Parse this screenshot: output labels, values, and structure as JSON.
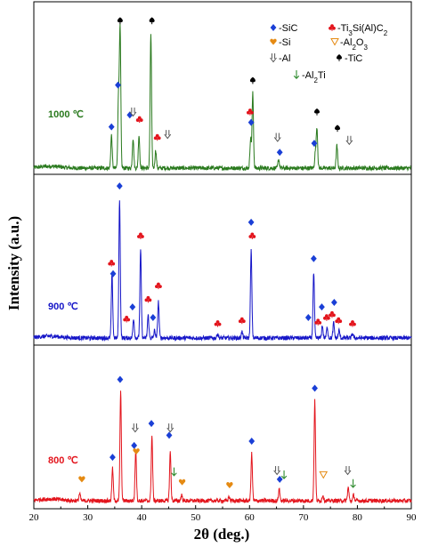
{
  "chart_data": {
    "type": "line",
    "xlabel": "2θ (deg.)",
    "ylabel": "Intensity (a.u.)",
    "xlim": [
      20,
      90
    ],
    "x_ticks": [
      20,
      30,
      40,
      50,
      60,
      70,
      80,
      90
    ],
    "panels": [
      {
        "label": "1000 ℃",
        "color": "#2a7a1e",
        "peaks": [
          {
            "x": 34.4,
            "h": 0.22
          },
          {
            "x": 35.7,
            "h": 0.47
          },
          {
            "x": 36.0,
            "h": 0.92
          },
          {
            "x": 38.4,
            "h": 0.2
          },
          {
            "x": 39.5,
            "h": 0.22
          },
          {
            "x": 41.7,
            "h": 0.9
          },
          {
            "x": 42.6,
            "h": 0.12
          },
          {
            "x": 60.2,
            "h": 0.2
          },
          {
            "x": 60.6,
            "h": 0.5
          },
          {
            "x": 65.4,
            "h": 0.06
          },
          {
            "x": 72.2,
            "h": 0.1
          },
          {
            "x": 72.5,
            "h": 0.27
          },
          {
            "x": 76.2,
            "h": 0.15
          }
        ],
        "markers": [
          {
            "x": 34.4,
            "type": "SiC",
            "h": 0.24
          },
          {
            "x": 35.6,
            "type": "SiC",
            "h": 0.52
          },
          {
            "x": 36.0,
            "type": "TiC",
            "h": 0.95
          },
          {
            "x": 37.8,
            "type": "SiC",
            "h": 0.32
          },
          {
            "x": 38.4,
            "type": "Al",
            "h": 0.34
          },
          {
            "x": 39.6,
            "type": "Ti3SiAlC2",
            "h": 0.29
          },
          {
            "x": 41.9,
            "type": "TiC",
            "h": 0.95
          },
          {
            "x": 42.9,
            "type": "Ti3SiAlC2",
            "h": 0.17
          },
          {
            "x": 44.8,
            "type": "Al",
            "h": 0.19
          },
          {
            "x": 60.3,
            "type": "SiC",
            "h": 0.27
          },
          {
            "x": 60.1,
            "type": "Ti3SiAlC2",
            "h": 0.34
          },
          {
            "x": 60.6,
            "type": "TiC",
            "h": 0.55
          },
          {
            "x": 65.2,
            "type": "Al",
            "h": 0.17
          },
          {
            "x": 65.6,
            "type": "SiC",
            "h": 0.07
          },
          {
            "x": 72.0,
            "type": "SiC",
            "h": 0.13
          },
          {
            "x": 72.5,
            "type": "TiC",
            "h": 0.34
          },
          {
            "x": 76.3,
            "type": "TiC",
            "h": 0.23
          },
          {
            "x": 78.5,
            "type": "Al",
            "h": 0.15
          }
        ]
      },
      {
        "label": "900 ℃",
        "color": "#1616c8",
        "peaks": [
          {
            "x": 34.5,
            "h": 0.42
          },
          {
            "x": 35.9,
            "h": 0.92
          },
          {
            "x": 38.5,
            "h": 0.13
          },
          {
            "x": 39.8,
            "h": 0.58
          },
          {
            "x": 41.2,
            "h": 0.15
          },
          {
            "x": 42.4,
            "h": 0.05
          },
          {
            "x": 43.1,
            "h": 0.24
          },
          {
            "x": 54.1,
            "h": 0.03
          },
          {
            "x": 58.6,
            "h": 0.04
          },
          {
            "x": 60.3,
            "h": 0.58
          },
          {
            "x": 71.9,
            "h": 0.43
          },
          {
            "x": 73.5,
            "h": 0.08
          },
          {
            "x": 74.4,
            "h": 0.07
          },
          {
            "x": 75.6,
            "h": 0.1
          },
          {
            "x": 76.6,
            "h": 0.05
          },
          {
            "x": 79.1,
            "h": 0.03
          }
        ],
        "markers": [
          {
            "x": 34.4,
            "type": "Ti3SiAlC2",
            "h": 0.46
          },
          {
            "x": 34.7,
            "type": "SiC",
            "h": 0.39
          },
          {
            "x": 35.9,
            "type": "SiC",
            "h": 0.97
          },
          {
            "x": 37.2,
            "type": "Ti3SiAlC2",
            "h": 0.09
          },
          {
            "x": 38.3,
            "type": "SiC",
            "h": 0.17
          },
          {
            "x": 39.8,
            "type": "Ti3SiAlC2",
            "h": 0.64
          },
          {
            "x": 41.2,
            "type": "Ti3SiAlC2",
            "h": 0.22
          },
          {
            "x": 42.1,
            "type": "SiC",
            "h": 0.1
          },
          {
            "x": 43.1,
            "type": "Ti3SiAlC2",
            "h": 0.31
          },
          {
            "x": 54.1,
            "type": "Ti3SiAlC2",
            "h": 0.06
          },
          {
            "x": 58.6,
            "type": "Ti3SiAlC2",
            "h": 0.08
          },
          {
            "x": 60.3,
            "type": "SiC",
            "h": 0.73
          },
          {
            "x": 60.5,
            "type": "Ti3SiAlC2",
            "h": 0.64
          },
          {
            "x": 70.9,
            "type": "SiC",
            "h": 0.1
          },
          {
            "x": 71.9,
            "type": "SiC",
            "h": 0.49
          },
          {
            "x": 72.7,
            "type": "Ti3SiAlC2",
            "h": 0.07
          },
          {
            "x": 73.4,
            "type": "SiC",
            "h": 0.17
          },
          {
            "x": 74.3,
            "type": "Ti3SiAlC2",
            "h": 0.1
          },
          {
            "x": 75.3,
            "type": "Ti3SiAlC2",
            "h": 0.12
          },
          {
            "x": 75.7,
            "type": "SiC",
            "h": 0.2
          },
          {
            "x": 76.5,
            "type": "Ti3SiAlC2",
            "h": 0.08
          },
          {
            "x": 79.1,
            "type": "Ti3SiAlC2",
            "h": 0.06
          }
        ]
      },
      {
        "label": "800 ℃",
        "color": "#e3141c",
        "peaks": [
          {
            "x": 28.5,
            "h": 0.05
          },
          {
            "x": 34.6,
            "h": 0.22
          },
          {
            "x": 36.1,
            "h": 0.74
          },
          {
            "x": 38.9,
            "h": 0.35
          },
          {
            "x": 41.9,
            "h": 0.44
          },
          {
            "x": 45.3,
            "h": 0.33
          },
          {
            "x": 47.4,
            "h": 0.04
          },
          {
            "x": 56.2,
            "h": 0.03
          },
          {
            "x": 60.4,
            "h": 0.32
          },
          {
            "x": 65.5,
            "h": 0.08
          },
          {
            "x": 72.1,
            "h": 0.68
          },
          {
            "x": 73.6,
            "h": 0.04
          },
          {
            "x": 78.3,
            "h": 0.09
          },
          {
            "x": 79.3,
            "h": 0.04
          }
        ],
        "markers": [
          {
            "x": 28.9,
            "type": "Si",
            "h": 0.11
          },
          {
            "x": 34.6,
            "type": "SiC",
            "h": 0.26
          },
          {
            "x": 36.0,
            "type": "SiC",
            "h": 0.79
          },
          {
            "x": 38.6,
            "type": "SiC",
            "h": 0.34
          },
          {
            "x": 38.8,
            "type": "Al",
            "h": 0.46
          },
          {
            "x": 39.0,
            "type": "Si",
            "h": 0.3
          },
          {
            "x": 41.8,
            "type": "SiC",
            "h": 0.49
          },
          {
            "x": 45.1,
            "type": "SiC",
            "h": 0.41
          },
          {
            "x": 45.3,
            "type": "Al",
            "h": 0.46
          },
          {
            "x": 46.0,
            "type": "Al2Ti",
            "h": 0.16
          },
          {
            "x": 47.5,
            "type": "Si",
            "h": 0.09
          },
          {
            "x": 56.3,
            "type": "Si",
            "h": 0.07
          },
          {
            "x": 60.4,
            "type": "SiC",
            "h": 0.37
          },
          {
            "x": 65.1,
            "type": "Al",
            "h": 0.17
          },
          {
            "x": 65.6,
            "type": "SiC",
            "h": 0.11
          },
          {
            "x": 66.4,
            "type": "Al2Ti",
            "h": 0.14
          },
          {
            "x": 72.1,
            "type": "SiC",
            "h": 0.73
          },
          {
            "x": 73.7,
            "type": "Al2O3",
            "h": 0.14
          },
          {
            "x": 78.2,
            "type": "Al",
            "h": 0.17
          },
          {
            "x": 79.2,
            "type": "Al2Ti",
            "h": 0.08
          }
        ]
      }
    ],
    "legend": {
      "placement": "top-right",
      "entries": [
        {
          "key": "SiC",
          "label": "-SiC"
        },
        {
          "key": "Ti3SiAlC2",
          "label": "-Ti",
          "sub1": "3",
          "mid": "Si(Al)C",
          "sub2": "2"
        },
        {
          "key": "Si",
          "label": "-Si"
        },
        {
          "key": "Al2O3",
          "label": "-Al",
          "sub1": "2",
          "mid": "O",
          "sub2": "3"
        },
        {
          "key": "Al",
          "label": "-Al"
        },
        {
          "key": "TiC",
          "label": "-TiC"
        },
        {
          "key": "Al2Ti",
          "label": "-Al",
          "sub1": "2",
          "mid": "Ti"
        }
      ]
    },
    "marker_colors": {
      "SiC": "#1a3fd6",
      "Ti3SiAlC2": "#e3141c",
      "Si": "#e58a12",
      "Al2O3": "#e58a12",
      "Al": "#555555",
      "TiC": "#000000",
      "Al2Ti": "#2e8b2e"
    }
  }
}
